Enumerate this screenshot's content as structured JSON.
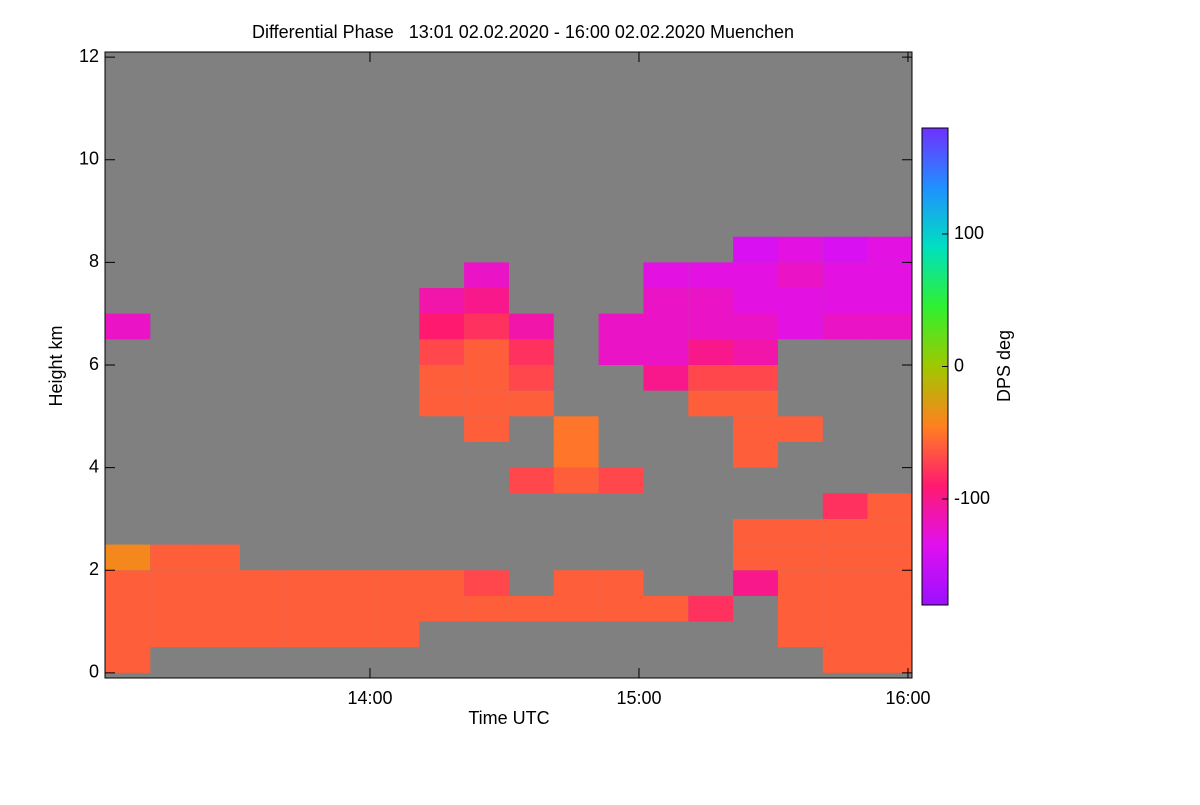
{
  "chart_data": {
    "type": "heatmap",
    "title": "Differential Phase   13:01 02.02.2020 - 16:00 02.02.2020 Muenchen",
    "x_label": "Time UTC",
    "y_label": "Height km",
    "colorbar_label": "DPS deg",
    "xlim": [
      13.015,
      16.015
    ],
    "xticks": [
      {
        "value": 14,
        "label": "14:00"
      },
      {
        "value": 15,
        "label": "15:00"
      },
      {
        "value": 16,
        "label": "16:00"
      }
    ],
    "ylim": [
      -0.1,
      12.1
    ],
    "yticks": [
      0,
      2,
      4,
      6,
      8,
      10,
      12
    ],
    "zlim": [
      -180,
      180
    ],
    "zticks": [
      -100,
      0,
      100
    ],
    "background_color": "#808080",
    "colormap": [
      "#9a10ff",
      "#e010f0",
      "#ff1a70",
      "#ff8020",
      "#a0c800",
      "#30f030",
      "#00e0c0",
      "#2090ff",
      "#7030ff"
    ],
    "x": [
      13.1,
      13.2667,
      13.4333,
      13.6,
      13.7667,
      13.9333,
      14.1,
      14.2667,
      14.4333,
      14.6,
      14.7667,
      14.9333,
      15.1,
      15.2667,
      15.4333,
      15.6,
      15.7667,
      15.9333
    ],
    "y": [
      0.25,
      0.75,
      1.25,
      1.75,
      2.25,
      2.75,
      3.25,
      3.75,
      4.25,
      4.75,
      5.25,
      5.75,
      6.25,
      6.75,
      7.25,
      7.75,
      8.25,
      8.75,
      9.25,
      9.75,
      10.25,
      10.75,
      11.25,
      11.75
    ],
    "z": [
      [
        -60,
        null,
        null,
        null,
        null,
        null,
        null,
        null,
        null,
        null,
        null,
        null,
        null,
        null,
        null,
        null,
        -60,
        -60
      ],
      [
        -60,
        -60,
        -60,
        -60,
        -60,
        -60,
        -60,
        null,
        null,
        null,
        null,
        null,
        null,
        null,
        null,
        -60,
        -60,
        -60
      ],
      [
        -60,
        -60,
        -60,
        -60,
        -60,
        -60,
        -60,
        -60,
        -60,
        -60,
        -60,
        -60,
        -60,
        -80,
        null,
        -60,
        -60,
        -60
      ],
      [
        -60,
        -60,
        -60,
        -60,
        -60,
        -60,
        -60,
        -60,
        -70,
        null,
        -60,
        -60,
        null,
        null,
        -100,
        -60,
        -60,
        -60
      ],
      [
        -40,
        -60,
        -60,
        null,
        null,
        null,
        null,
        null,
        null,
        null,
        null,
        null,
        null,
        null,
        -60,
        -60,
        -60,
        -60
      ],
      [
        null,
        null,
        null,
        null,
        null,
        null,
        null,
        null,
        null,
        null,
        null,
        null,
        null,
        null,
        -60,
        -60,
        -60,
        -60
      ],
      [
        null,
        null,
        null,
        null,
        null,
        null,
        null,
        null,
        null,
        null,
        null,
        null,
        null,
        null,
        null,
        null,
        -80,
        -60
      ],
      [
        null,
        null,
        null,
        null,
        null,
        null,
        null,
        null,
        null,
        -70,
        -60,
        -70,
        null,
        null,
        null,
        null,
        null,
        null
      ],
      [
        null,
        null,
        null,
        null,
        null,
        null,
        null,
        null,
        null,
        null,
        -50,
        null,
        null,
        null,
        -60,
        null,
        null,
        null
      ],
      [
        null,
        null,
        null,
        null,
        null,
        null,
        null,
        null,
        -60,
        null,
        -50,
        null,
        null,
        null,
        -60,
        -60,
        null,
        null
      ],
      [
        null,
        null,
        null,
        null,
        null,
        null,
        null,
        -60,
        -60,
        -60,
        null,
        null,
        null,
        -60,
        -60,
        null,
        null,
        null
      ],
      [
        null,
        null,
        null,
        null,
        null,
        null,
        null,
        -60,
        -60,
        -70,
        null,
        null,
        -100,
        -70,
        -70,
        null,
        null,
        null
      ],
      [
        null,
        null,
        null,
        null,
        null,
        null,
        null,
        -70,
        -60,
        -80,
        null,
        -120,
        -120,
        -100,
        -110,
        null,
        null,
        null
      ],
      [
        -120,
        null,
        null,
        null,
        null,
        null,
        null,
        -90,
        -80,
        -110,
        null,
        -120,
        -120,
        -120,
        -120,
        -130,
        -120,
        -120
      ],
      [
        null,
        null,
        null,
        null,
        null,
        null,
        null,
        -110,
        -100,
        null,
        null,
        null,
        -120,
        -120,
        -130,
        -130,
        -130,
        -130
      ],
      [
        null,
        null,
        null,
        null,
        null,
        null,
        null,
        null,
        -120,
        null,
        null,
        null,
        -130,
        -130,
        -130,
        -120,
        -130,
        -130
      ],
      [
        null,
        null,
        null,
        null,
        null,
        null,
        null,
        null,
        null,
        null,
        null,
        null,
        null,
        null,
        -140,
        -130,
        -140,
        -130
      ],
      [
        null,
        null,
        null,
        null,
        null,
        null,
        null,
        null,
        null,
        null,
        null,
        null,
        null,
        null,
        null,
        null,
        null,
        null
      ],
      [
        null,
        null,
        null,
        null,
        null,
        null,
        null,
        null,
        null,
        null,
        null,
        null,
        null,
        null,
        null,
        null,
        null,
        null
      ],
      [
        null,
        null,
        null,
        null,
        null,
        null,
        null,
        null,
        null,
        null,
        null,
        null,
        null,
        null,
        null,
        null,
        null,
        null
      ],
      [
        null,
        null,
        null,
        null,
        null,
        null,
        null,
        null,
        null,
        null,
        null,
        null,
        null,
        null,
        null,
        null,
        null,
        null
      ],
      [
        null,
        null,
        null,
        null,
        null,
        null,
        null,
        null,
        null,
        null,
        null,
        null,
        null,
        null,
        null,
        null,
        null,
        null
      ],
      [
        null,
        null,
        null,
        null,
        null,
        null,
        null,
        null,
        null,
        null,
        null,
        null,
        null,
        null,
        null,
        null,
        null,
        null
      ],
      [
        null,
        null,
        null,
        null,
        null,
        null,
        null,
        null,
        null,
        null,
        null,
        null,
        null,
        null,
        null,
        null,
        null,
        null
      ]
    ]
  }
}
